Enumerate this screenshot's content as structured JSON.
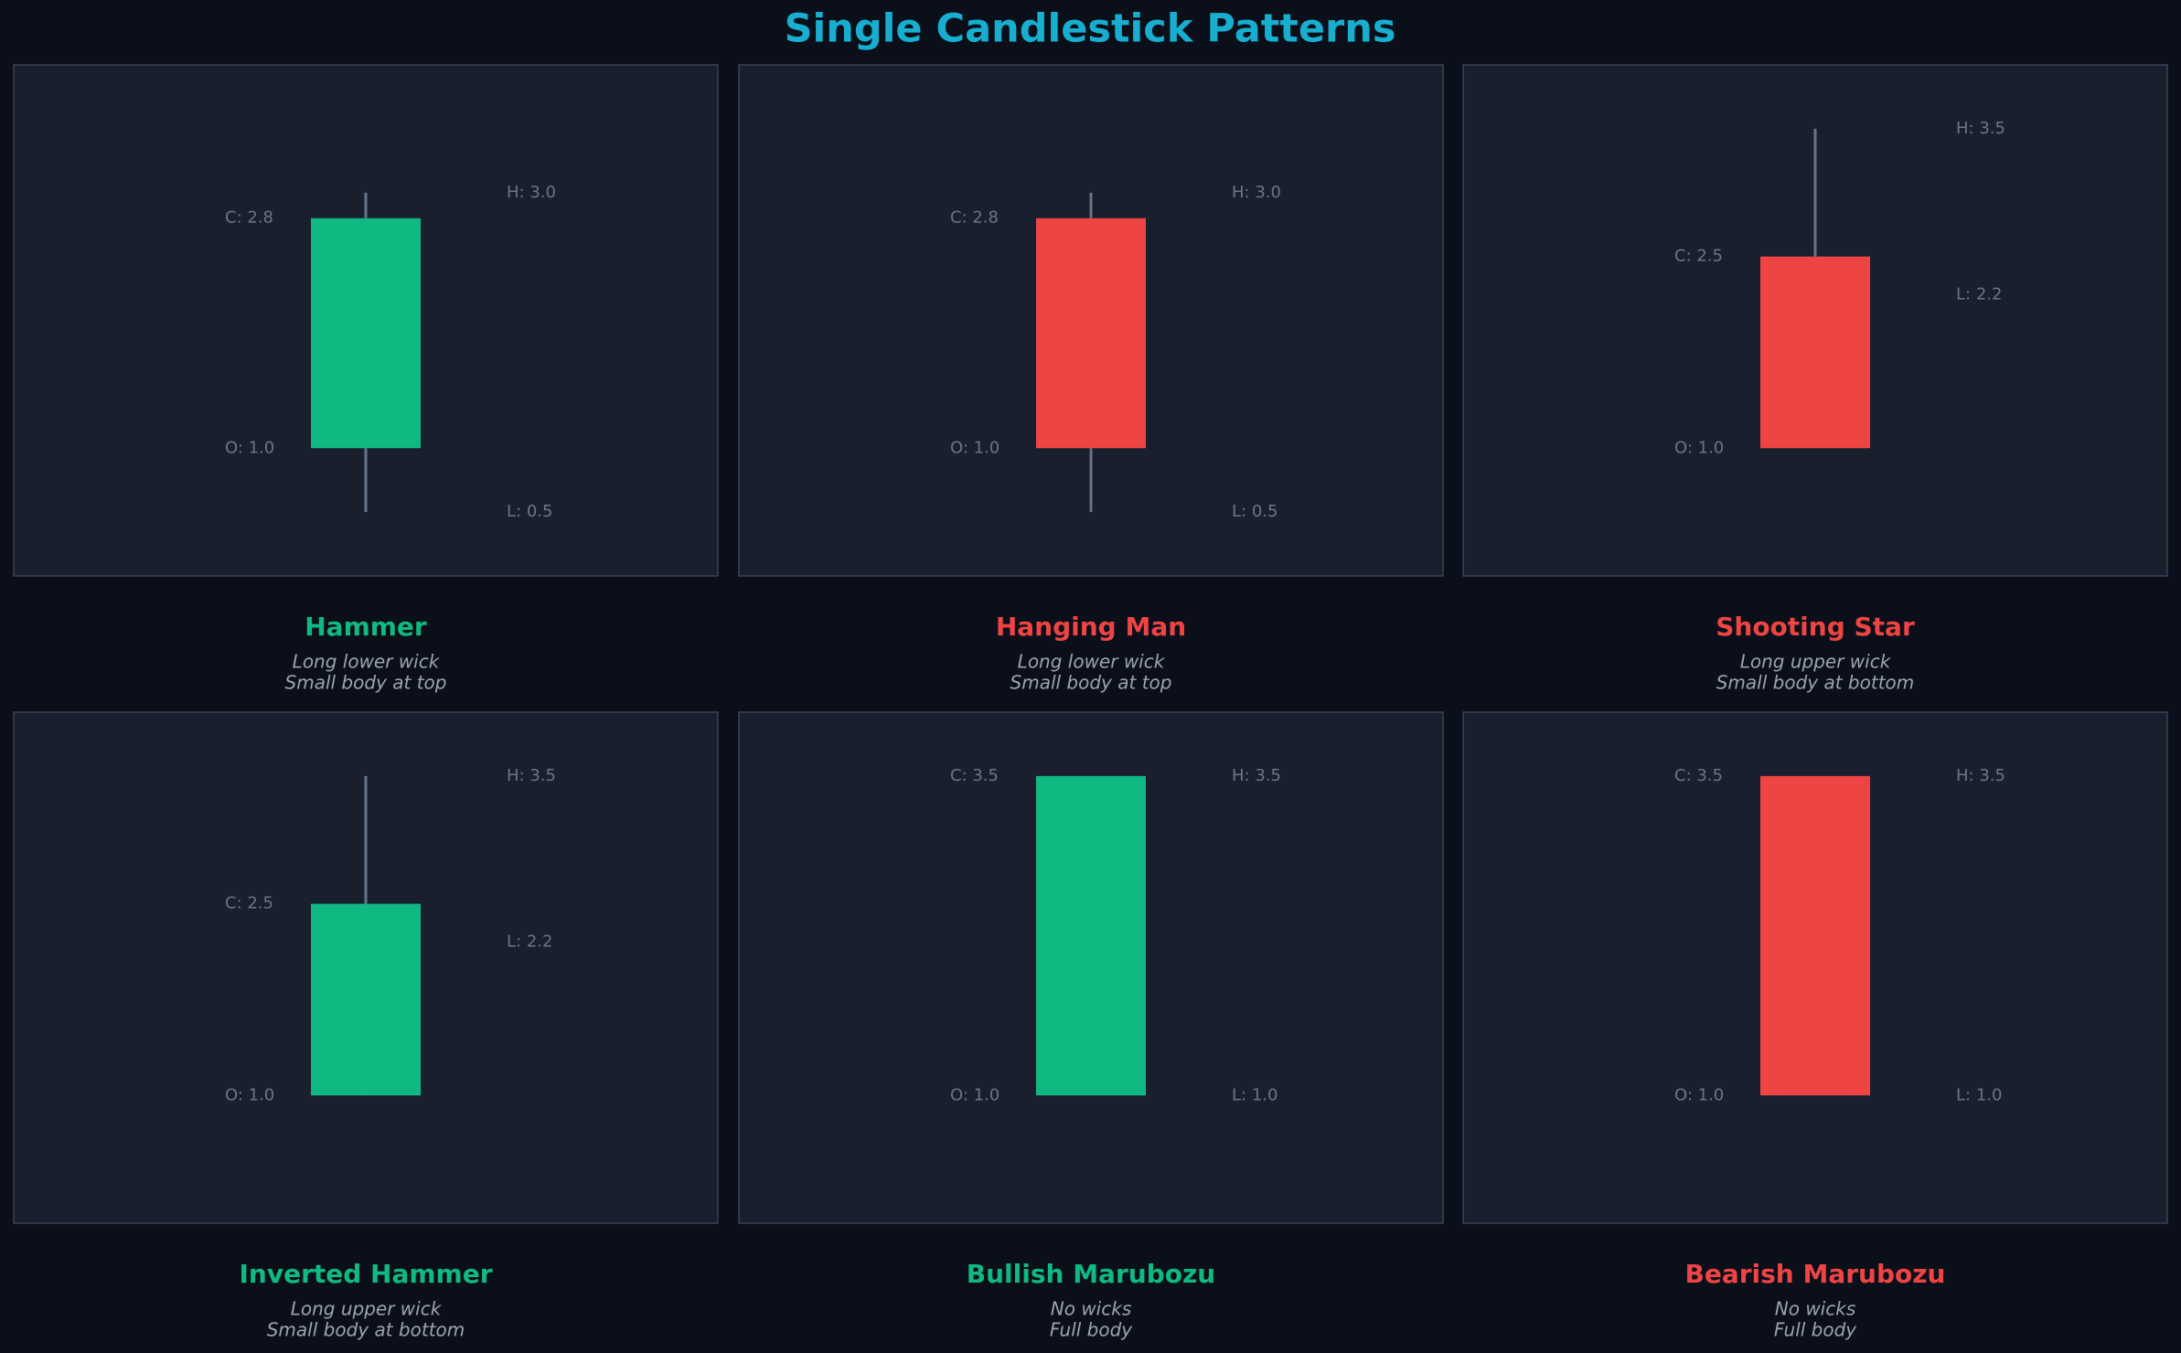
{
  "title": "Single Candlestick Patterns",
  "chart_data": [
    {
      "type": "candlestick",
      "title": "Hammer",
      "subtitle": [
        "Long lower wick",
        "Small body at top"
      ],
      "color": "#10b981",
      "ylim": [
        0,
        4
      ],
      "values": {
        "open": 1.0,
        "high": 3.0,
        "low": 0.5,
        "close": 2.8
      },
      "value_labels": {
        "open": "O: 1.0",
        "high": "H: 3.0",
        "low": "L: 0.5",
        "close": "C: 2.8"
      }
    },
    {
      "type": "candlestick",
      "title": "Hanging Man",
      "subtitle": [
        "Long lower wick",
        "Small body at top"
      ],
      "color": "#ef4444",
      "ylim": [
        0,
        4
      ],
      "values": {
        "open": 1.0,
        "high": 3.0,
        "low": 0.5,
        "close": 2.8
      },
      "value_labels": {
        "open": "O: 1.0",
        "high": "H: 3.0",
        "low": "L: 0.5",
        "close": "C: 2.8"
      }
    },
    {
      "type": "candlestick",
      "title": "Shooting Star",
      "subtitle": [
        "Long upper wick",
        "Small body at bottom"
      ],
      "color": "#ef4444",
      "ylim": [
        0,
        4
      ],
      "values": {
        "open": 1.0,
        "high": 3.5,
        "low": 2.2,
        "close": 2.5
      },
      "value_labels": {
        "open": "O: 1.0",
        "high": "H: 3.5",
        "low": "L: 2.2",
        "close": "C: 2.5"
      }
    },
    {
      "type": "candlestick",
      "title": "Inverted Hammer",
      "subtitle": [
        "Long upper wick",
        "Small body at bottom"
      ],
      "color": "#10b981",
      "ylim": [
        0,
        4
      ],
      "values": {
        "open": 1.0,
        "high": 3.5,
        "low": 2.2,
        "close": 2.5
      },
      "value_labels": {
        "open": "O: 1.0",
        "high": "H: 3.5",
        "low": "L: 2.2",
        "close": "C: 2.5"
      }
    },
    {
      "type": "candlestick",
      "title": "Bullish Marubozu",
      "subtitle": [
        "No wicks",
        "Full body"
      ],
      "color": "#10b981",
      "ylim": [
        0,
        4
      ],
      "values": {
        "open": 1.0,
        "high": 3.5,
        "low": 1.0,
        "close": 3.5
      },
      "value_labels": {
        "open": "O: 1.0",
        "high": "H: 3.5",
        "low": "L: 1.0",
        "close": "C: 3.5"
      }
    },
    {
      "type": "candlestick",
      "title": "Bearish Marubozu",
      "subtitle": [
        "No wicks",
        "Full body"
      ],
      "color": "#ef4444",
      "ylim": [
        0,
        4
      ],
      "values": {
        "open": 1.0,
        "high": 3.5,
        "low": 1.0,
        "close": 3.5
      },
      "value_labels": {
        "open": "O: 1.0",
        "high": "H: 3.5",
        "low": "L: 1.0",
        "close": "C: 3.5"
      }
    }
  ]
}
